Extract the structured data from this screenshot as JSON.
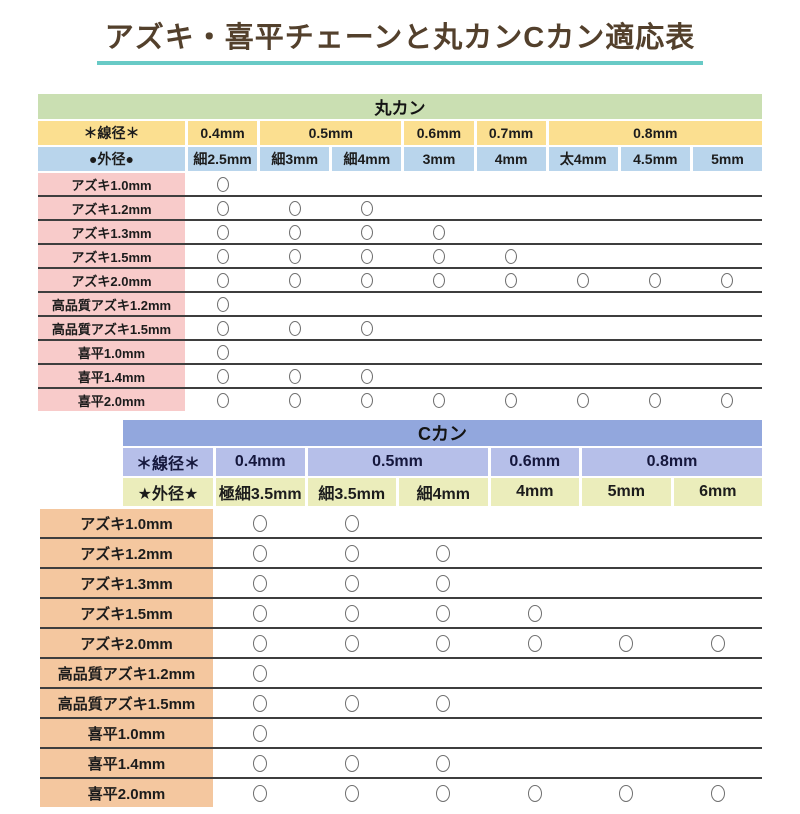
{
  "page": {
    "title": "アズキ・喜平チェーンと丸カンCカン適応表",
    "title_color": "#53402c",
    "underline_color": "#68cac6",
    "background": "#ffffff"
  },
  "mark_legend": "○ = 適応(compatible)",
  "chart_data": [
    {
      "type": "table",
      "title": "丸カン",
      "wire_label": "＊線径＊",
      "outer_label": "●外径●",
      "wire_groups": [
        {
          "label": "0.4mm",
          "span": 1
        },
        {
          "label": "0.5mm",
          "span": 2
        },
        {
          "label": "0.6mm",
          "span": 1
        },
        {
          "label": "0.7mm",
          "span": 1
        },
        {
          "label": "0.8mm",
          "span": 3
        }
      ],
      "outer_columns": [
        "細2.5mm",
        "細3mm",
        "細4mm",
        "3mm",
        "4mm",
        "太4mm",
        "4.5mm",
        "5mm"
      ],
      "mark": "○",
      "rows": [
        {
          "label": "アズキ1.0mm",
          "marks": [
            1,
            0,
            0,
            0,
            0,
            0,
            0,
            0
          ]
        },
        {
          "label": "アズキ1.2mm",
          "marks": [
            1,
            1,
            1,
            0,
            0,
            0,
            0,
            0
          ]
        },
        {
          "label": "アズキ1.3mm",
          "marks": [
            1,
            1,
            1,
            1,
            0,
            0,
            0,
            0
          ]
        },
        {
          "label": "アズキ1.5mm",
          "marks": [
            1,
            1,
            1,
            1,
            1,
            0,
            0,
            0
          ]
        },
        {
          "label": "アズキ2.0mm",
          "marks": [
            1,
            1,
            1,
            1,
            1,
            1,
            1,
            1
          ]
        },
        {
          "label": "高品質アズキ1.2mm",
          "marks": [
            1,
            0,
            0,
            0,
            0,
            0,
            0,
            0
          ]
        },
        {
          "label": "高品質アズキ1.5mm",
          "marks": [
            1,
            1,
            1,
            0,
            0,
            0,
            0,
            0
          ]
        },
        {
          "label": "喜平1.0mm",
          "marks": [
            1,
            0,
            0,
            0,
            0,
            0,
            0,
            0
          ]
        },
        {
          "label": "喜平1.4mm",
          "marks": [
            1,
            1,
            1,
            0,
            0,
            0,
            0,
            0
          ]
        },
        {
          "label": "喜平2.0mm",
          "marks": [
            1,
            1,
            1,
            1,
            1,
            1,
            1,
            1
          ]
        }
      ],
      "colors": {
        "header_bg": "#cadfb2",
        "wire_bg": "#fbdf90",
        "outer_bg": "#b9d5ec",
        "label_bg": "#f8cbca",
        "separator": "#3e3e3e",
        "mark_stroke": "#6f6f6f"
      }
    },
    {
      "type": "table",
      "title": "Cカン",
      "wire_label": "＊線径＊",
      "outer_label": "★外径★",
      "wire_groups": [
        {
          "label": "0.4mm",
          "span": 1
        },
        {
          "label": "0.5mm",
          "span": 2
        },
        {
          "label": "0.6mm",
          "span": 1
        },
        {
          "label": "0.8mm",
          "span": 2
        }
      ],
      "outer_columns": [
        "極細3.5mm",
        "細3.5mm",
        "細4mm",
        "4mm",
        "5mm",
        "6mm"
      ],
      "mark": "○",
      "rows": [
        {
          "label": "アズキ1.0mm",
          "marks": [
            1,
            1,
            0,
            0,
            0,
            0
          ]
        },
        {
          "label": "アズキ1.2mm",
          "marks": [
            1,
            1,
            1,
            0,
            0,
            0
          ]
        },
        {
          "label": "アズキ1.3mm",
          "marks": [
            1,
            1,
            1,
            0,
            0,
            0
          ]
        },
        {
          "label": "アズキ1.5mm",
          "marks": [
            1,
            1,
            1,
            1,
            0,
            0
          ]
        },
        {
          "label": "アズキ2.0mm",
          "marks": [
            1,
            1,
            1,
            1,
            1,
            1
          ]
        },
        {
          "label": "高品質アズキ1.2mm",
          "marks": [
            1,
            0,
            0,
            0,
            0,
            0
          ]
        },
        {
          "label": "高品質アズキ1.5mm",
          "marks": [
            1,
            1,
            1,
            0,
            0,
            0
          ]
        },
        {
          "label": "喜平1.0mm",
          "marks": [
            1,
            0,
            0,
            0,
            0,
            0
          ]
        },
        {
          "label": "喜平1.4mm",
          "marks": [
            1,
            1,
            1,
            0,
            0,
            0
          ]
        },
        {
          "label": "喜平2.0mm",
          "marks": [
            1,
            1,
            1,
            1,
            1,
            1
          ]
        }
      ],
      "colors": {
        "header_bg": "#92a7dd",
        "wire_bg": "#b6bfe9",
        "outer_bg": "#ebedbb",
        "label_bg": "#f4c79f",
        "separator": "#3e3e3e",
        "mark_stroke": "#6f6f6f"
      }
    }
  ]
}
